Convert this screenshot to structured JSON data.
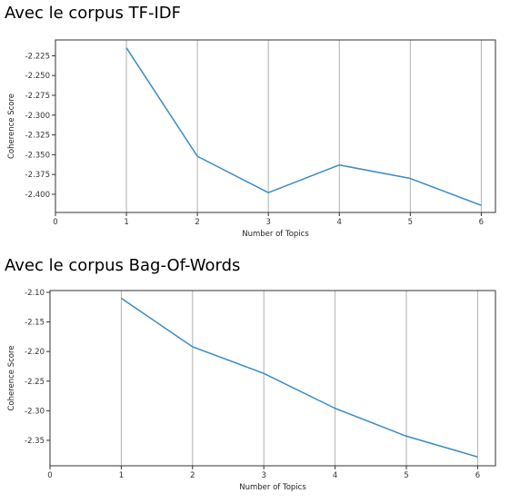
{
  "headings": {
    "tfidf": "Avec le corpus TF-IDF",
    "bow": "Avec le corpus Bag-Of-Words"
  },
  "colors": {
    "line": "#3b8ac4",
    "grid": "#b0b0b0",
    "axes": "#333333"
  },
  "chart_data": [
    {
      "type": "line",
      "title": "",
      "xlabel": "Number of Topics",
      "ylabel": "Coherence Score",
      "x": [
        1,
        2,
        3,
        4,
        5,
        6
      ],
      "series": [
        {
          "values": [
            -2.215,
            -2.352,
            -2.398,
            -2.363,
            -2.38,
            -2.414
          ]
        }
      ],
      "xlim": [
        0,
        6.2
      ],
      "ylim": [
        -2.423,
        -2.205
      ],
      "xticks": [
        0,
        1,
        2,
        3,
        4,
        5,
        6
      ],
      "yticks": [
        -2.225,
        -2.25,
        -2.275,
        -2.3,
        -2.325,
        -2.35,
        -2.375,
        -2.4
      ],
      "yticklabels": [
        "-2.225",
        "-2.250",
        "-2.275",
        "-2.300",
        "-2.325",
        "-2.350",
        "-2.375",
        "-2.400"
      ],
      "grid": "vertical"
    },
    {
      "type": "line",
      "title": "",
      "xlabel": "Number of Topics",
      "ylabel": "Coherence Score",
      "x": [
        1,
        2,
        3,
        4,
        5,
        6
      ],
      "series": [
        {
          "values": [
            -2.11,
            -2.192,
            -2.237,
            -2.296,
            -2.343,
            -2.378
          ]
        }
      ],
      "xlim": [
        0,
        6.25
      ],
      "ylim": [
        -2.393,
        -2.097
      ],
      "xticks": [
        0,
        1,
        2,
        3,
        4,
        5,
        6
      ],
      "yticks": [
        -2.1,
        -2.15,
        -2.2,
        -2.25,
        -2.3,
        -2.35
      ],
      "yticklabels": [
        "-2.10",
        "-2.15",
        "-2.20",
        "-2.25",
        "-2.30",
        "-2.35"
      ],
      "grid": "vertical"
    }
  ]
}
